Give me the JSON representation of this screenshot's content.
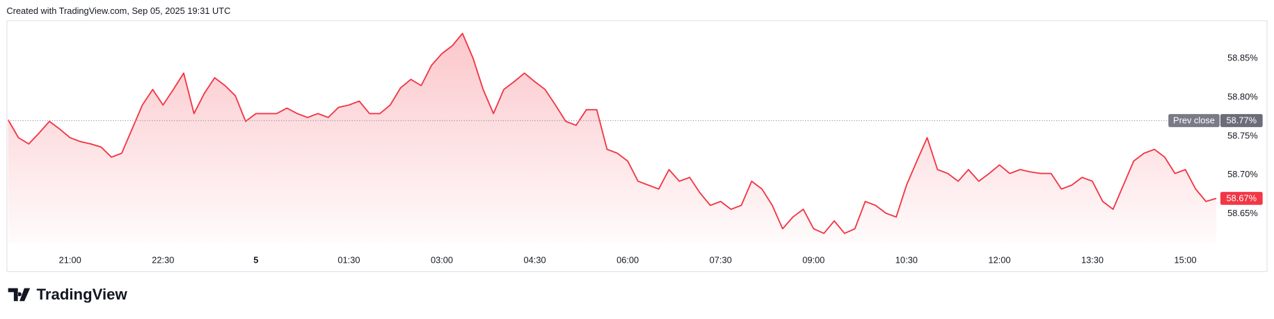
{
  "header": {
    "text": "Created with TradingView.com, Sep 05, 2025 19:31 UTC"
  },
  "footer": {
    "logo": "TradingView"
  },
  "chart_data": {
    "type": "area",
    "x": [
      "20:00",
      "20:10",
      "20:20",
      "20:30",
      "20:40",
      "20:50",
      "21:00",
      "21:10",
      "21:20",
      "21:30",
      "21:40",
      "21:50",
      "22:00",
      "22:10",
      "22:20",
      "22:30",
      "22:40",
      "22:50",
      "23:00",
      "23:10",
      "23:20",
      "23:30",
      "23:40",
      "23:50",
      "00:00",
      "00:10",
      "00:20",
      "00:30",
      "00:40",
      "00:50",
      "01:00",
      "01:10",
      "01:20",
      "01:30",
      "01:40",
      "01:50",
      "02:00",
      "02:10",
      "02:20",
      "02:30",
      "02:40",
      "02:50",
      "03:00",
      "03:10",
      "03:20",
      "03:30",
      "03:40",
      "03:50",
      "04:00",
      "04:10",
      "04:20",
      "04:30",
      "04:40",
      "04:50",
      "05:00",
      "05:10",
      "05:20",
      "05:30",
      "05:40",
      "05:50",
      "06:00",
      "06:10",
      "06:20",
      "06:30",
      "06:40",
      "06:50",
      "07:00",
      "07:10",
      "07:20",
      "07:30",
      "07:40",
      "07:50",
      "08:00",
      "08:10",
      "08:20",
      "08:30",
      "08:40",
      "08:50",
      "09:00",
      "09:10",
      "09:20",
      "09:30",
      "09:40",
      "09:50",
      "10:00",
      "10:10",
      "10:20",
      "10:30",
      "10:40",
      "10:50",
      "11:00",
      "11:10",
      "11:20",
      "11:30",
      "11:40",
      "11:50",
      "12:00",
      "12:10",
      "12:20",
      "12:30",
      "12:40",
      "12:50",
      "13:00",
      "13:10",
      "13:20",
      "13:30",
      "13:40",
      "13:50",
      "14:00",
      "14:10",
      "14:20",
      "14:30",
      "14:40",
      "14:50",
      "15:00",
      "15:10",
      "15:20",
      "15:30"
    ],
    "series": [
      {
        "color": "#f23645",
        "values": [
          58.771,
          58.748,
          58.74,
          58.754,
          58.769,
          58.759,
          58.748,
          58.743,
          58.74,
          58.736,
          58.723,
          58.728,
          58.759,
          58.79,
          58.81,
          58.79,
          58.81,
          58.831,
          58.779,
          58.805,
          58.825,
          58.815,
          58.802,
          58.769,
          58.779,
          58.779,
          58.779,
          58.786,
          58.779,
          58.774,
          58.779,
          58.774,
          58.787,
          58.79,
          58.795,
          58.779,
          58.779,
          58.79,
          58.812,
          58.823,
          58.815,
          58.841,
          58.856,
          58.866,
          58.882,
          58.851,
          58.81,
          58.779,
          58.81,
          58.82,
          58.831,
          58.82,
          58.81,
          58.79,
          58.769,
          58.764,
          58.784,
          58.784,
          58.733,
          58.728,
          58.718,
          58.692,
          58.687,
          58.682,
          58.707,
          58.692,
          58.697,
          58.677,
          58.661,
          58.666,
          58.656,
          58.661,
          58.692,
          58.682,
          58.661,
          58.631,
          58.646,
          58.656,
          58.631,
          58.625,
          58.641,
          58.625,
          58.631,
          58.666,
          58.661,
          58.651,
          58.646,
          58.687,
          58.718,
          58.748,
          58.707,
          58.702,
          58.692,
          58.707,
          58.692,
          58.702,
          58.713,
          58.702,
          58.707,
          58.704,
          58.702,
          58.702,
          58.682,
          58.687,
          58.697,
          58.692,
          58.666,
          58.656,
          58.687,
          58.718,
          58.728,
          58.733,
          58.723,
          58.702,
          58.707,
          58.682,
          58.666,
          58.67
        ],
        "last_value_label": "58.67%"
      }
    ],
    "prev_close": {
      "value": 58.77,
      "label": "58.77%",
      "text": "Prev close"
    },
    "ylim": [
      58.612,
      58.902
    ],
    "yticks": [
      {
        "value": 58.65,
        "label": "58.65%"
      },
      {
        "value": 58.7,
        "label": "58.70%"
      },
      {
        "value": 58.75,
        "label": "58.75%"
      },
      {
        "value": 58.8,
        "label": "58.80%"
      },
      {
        "value": 58.85,
        "label": "58.85%"
      }
    ],
    "xticks": [
      {
        "value": "21:00",
        "label": "21:00"
      },
      {
        "value": "22:30",
        "label": "22:30"
      },
      {
        "value": "00:00",
        "label": "5"
      },
      {
        "value": "01:30",
        "label": "01:30"
      },
      {
        "value": "03:00",
        "label": "03:00"
      },
      {
        "value": "04:30",
        "label": "04:30"
      },
      {
        "value": "06:00",
        "label": "06:00"
      },
      {
        "value": "07:30",
        "label": "07:30"
      },
      {
        "value": "09:00",
        "label": "09:00"
      },
      {
        "value": "10:30",
        "label": "10:30"
      },
      {
        "value": "12:00",
        "label": "12:00"
      },
      {
        "value": "13:30",
        "label": "13:30"
      },
      {
        "value": "15:00",
        "label": "15:00"
      }
    ],
    "grid": false
  }
}
